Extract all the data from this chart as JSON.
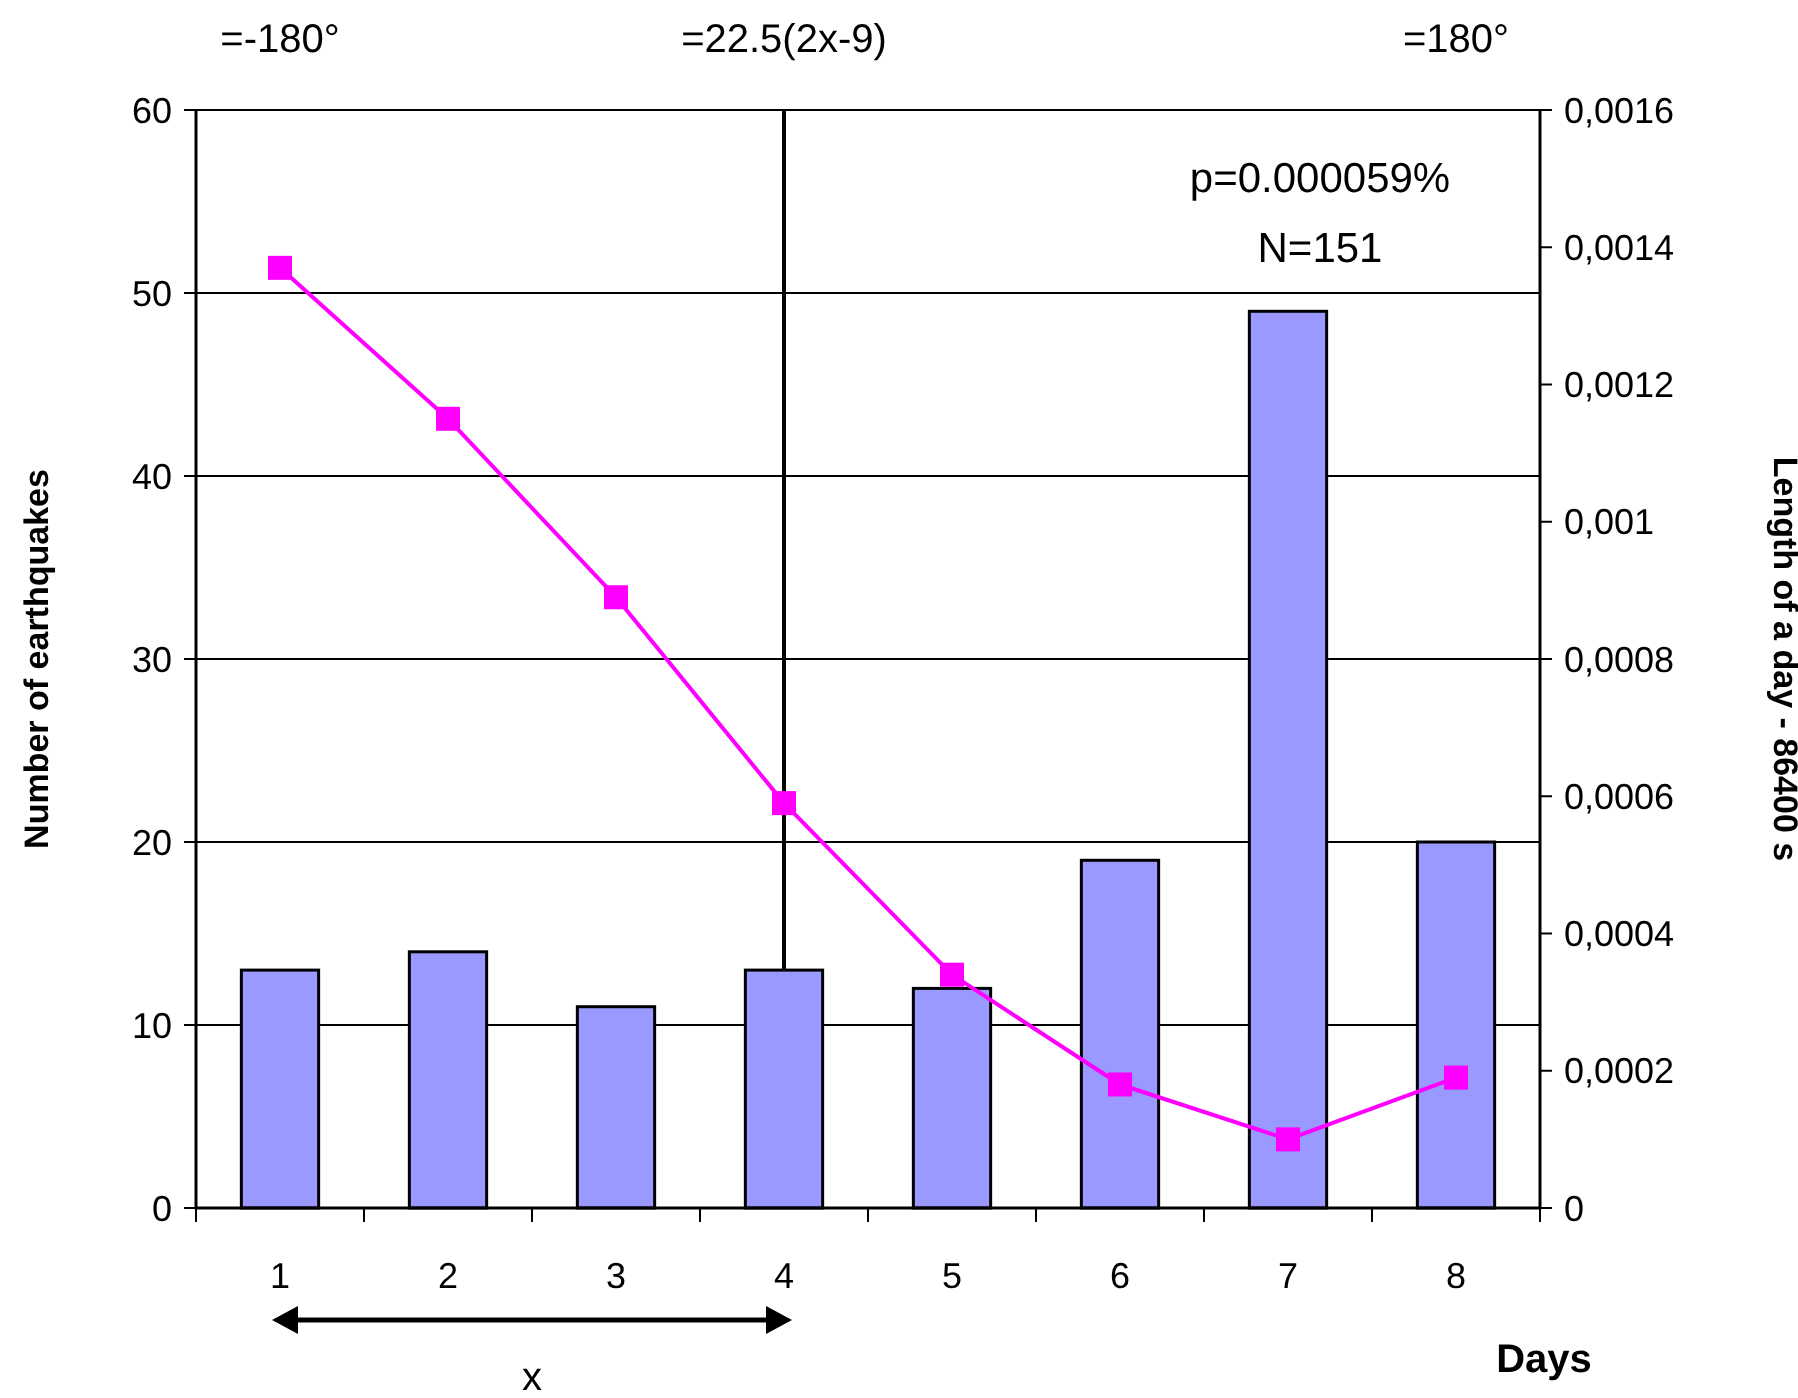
{
  "chart_data": {
    "type": "bar",
    "xlabel": "Days",
    "ylabel": "Number of earthquakes",
    "y2label": "Length of a day - 86400 s",
    "categories": [
      "1",
      "2",
      "3",
      "4",
      "5",
      "6",
      "7",
      "8"
    ],
    "series": [
      {
        "color": "#9999ff",
        "values": [
          13,
          14,
          11,
          13,
          12,
          19,
          49,
          20
        ]
      },
      {
        "type": "line",
        "axis": "y2",
        "color": "#ff00ff",
        "marker": "square",
        "line_style": "solid",
        "values": [
          0.00137,
          0.00115,
          0.00089,
          0.00059,
          0.00034,
          0.00018,
          0.0001,
          0.00019
        ]
      }
    ],
    "ylim": [
      0,
      60
    ],
    "yticks": [
      0,
      10,
      20,
      30,
      40,
      50,
      60
    ],
    "y2lim": [
      0,
      0.0016
    ],
    "y2ticks": [
      0,
      {
        "value": 0.0002,
        "label": "0,0002"
      },
      {
        "value": 0.0004,
        "label": "0,0004"
      },
      {
        "value": 0.0006,
        "label": "0,0006"
      },
      {
        "value": 0.0008,
        "label": "0,0008"
      },
      {
        "value": 0.001,
        "label": "0,001"
      },
      {
        "value": 0.0012,
        "label": "0,0012"
      },
      {
        "value": 0.0014,
        "label": "0,0014"
      },
      {
        "value": 0.0016,
        "label": "0,0016"
      }
    ],
    "grid": "y",
    "ref_lines": [
      {
        "axis": "x",
        "value": "4",
        "color": "#000000"
      }
    ],
    "annotations": [
      "=-180°",
      "=22.5(2x-9)",
      "=180°",
      "p=0.000059%",
      "N=151",
      "x"
    ]
  }
}
